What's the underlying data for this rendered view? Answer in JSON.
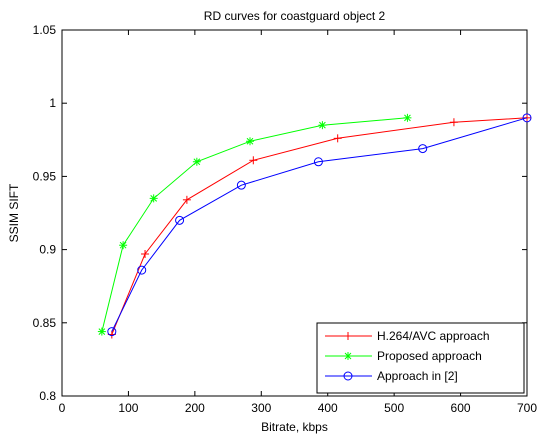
{
  "chart_data": {
    "type": "line",
    "title": "RD curves for coastguard object 2",
    "xlabel": "Bitrate, kbps",
    "ylabel": "SSIM SIFT",
    "xlim": [
      0,
      700
    ],
    "ylim": [
      0.8,
      1.05
    ],
    "xticks": [
      0,
      100,
      200,
      300,
      400,
      500,
      600,
      700
    ],
    "yticks": [
      0.8,
      0.85,
      0.9,
      0.95,
      1,
      1.05
    ],
    "xtick_labels": [
      "0",
      "100",
      "200",
      "300",
      "400",
      "500",
      "600",
      "700"
    ],
    "ytick_labels": [
      "0.8",
      "0.85",
      "0.9",
      "0.95",
      "1",
      "1.05"
    ],
    "grid": false,
    "legend_position": "bottom-right",
    "series": [
      {
        "name": "H.264/AVC approach",
        "color": "#ff0000",
        "marker": "plus",
        "x": [
          75,
          125,
          188,
          288,
          415,
          590,
          700
        ],
        "y": [
          0.842,
          0.897,
          0.934,
          0.961,
          0.976,
          0.987,
          0.99
        ]
      },
      {
        "name": "Proposed approach",
        "color": "#00ff00",
        "marker": "asterisk",
        "x": [
          60,
          92,
          138,
          203,
          283,
          392,
          520
        ],
        "y": [
          0.844,
          0.903,
          0.935,
          0.96,
          0.974,
          0.985,
          0.99
        ]
      },
      {
        "name": "Approach in [2]",
        "color": "#0000ff",
        "marker": "circle",
        "x": [
          75,
          120,
          177,
          270,
          386,
          543,
          700
        ],
        "y": [
          0.844,
          0.886,
          0.92,
          0.944,
          0.96,
          0.969,
          0.99
        ]
      }
    ]
  }
}
